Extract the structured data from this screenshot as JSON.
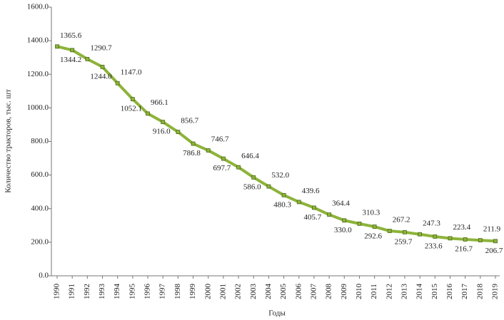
{
  "chart_data": {
    "type": "line",
    "x_label": "Годы",
    "y_label": "Количество тракторов, тыс. шт",
    "categories": [
      "1990",
      "1991",
      "1992",
      "1993",
      "1994",
      "1995",
      "1996",
      "1997",
      "1998",
      "1999",
      "2000",
      "2001",
      "2002",
      "2003",
      "2004",
      "2005",
      "2006",
      "2007",
      "2008",
      "2009",
      "2010",
      "2011",
      "2012",
      "2013",
      "2014",
      "2015",
      "2016",
      "2017",
      "2018",
      "2019"
    ],
    "series": [
      {
        "color": "#8db33a",
        "values": [
          1365.6,
          1344.2,
          1290.7,
          1244.0,
          1147.0,
          1052.1,
          966.1,
          916.0,
          856.7,
          786.8,
          746.7,
          697.7,
          646.4,
          586.0,
          532.0,
          480.3,
          439.6,
          405.7,
          364.4,
          330.0,
          310.3,
          292.6,
          267.2,
          259.7,
          247.3,
          233.6,
          223.4,
          216.7,
          211.9,
          206.7
        ],
        "value_labels": [
          "1365.6",
          "1344.2",
          "1290.7",
          "1244.0",
          "1147.0",
          "1052.1",
          "966.1",
          "916.0",
          "856.7",
          "786.8",
          "746.7",
          "697.7",
          "646.4",
          "586.0",
          "532.0",
          "480.3",
          "439.6",
          "405.7",
          "364.4",
          "330.0",
          "310.3",
          "292.6",
          "267.2",
          "259.7",
          "247.3",
          "233.6",
          "223.4",
          "216.7",
          "211.9",
          "206.7"
        ]
      }
    ],
    "ylim": [
      0,
      1600
    ],
    "yticks": [
      {
        "value": 0,
        "label": "0.0"
      },
      {
        "value": 200,
        "label": "200.0"
      },
      {
        "value": 400,
        "label": "400.0"
      },
      {
        "value": 600,
        "label": "600.0"
      },
      {
        "value": 800,
        "label": "800.0"
      },
      {
        "value": 1000,
        "label": "1000.0"
      },
      {
        "value": 1200,
        "label": "1200.0"
      },
      {
        "value": 1400,
        "label": "1400.0"
      },
      {
        "value": 1600,
        "label": "1600.0"
      }
    ],
    "grid": false
  }
}
